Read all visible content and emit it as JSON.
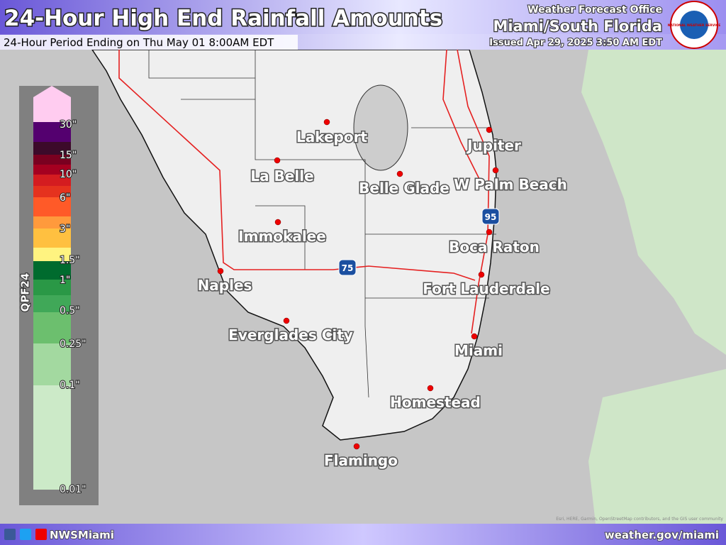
{
  "header": {
    "title": "24-Hour High End Rainfall Amounts",
    "subtitle": "24-Hour Period Ending on Thu May 01 8:00AM EDT",
    "office_line": "Weather Forecast Office",
    "office": "Miami/South Florida",
    "issued": "Issued Apr 29, 2025 3:50 AM EDT",
    "logo_text": "NATIONAL WEATHER SERVICE"
  },
  "legend": {
    "title": "QPF24",
    "labels": [
      "30\"",
      "15\"",
      "10\"",
      "6\"",
      "3\"",
      "1.5\"",
      "1\"",
      "0.5\"",
      "0.25\"",
      "0.1\"",
      "0.01\""
    ]
  },
  "map": {
    "cities": [
      "Lakeport",
      "La Belle",
      "Belle Glade",
      "Jupiter",
      "W Palm Beach",
      "Immokalee",
      "Boca Raton",
      "Naples",
      "Fort Lauderdale",
      "Everglades City",
      "Miami",
      "Homestead",
      "Flamingo"
    ],
    "shields": [
      "75",
      "95"
    ],
    "attribution": "Esri, HERE, Garmin, OpenStreetMap contributors, and the GIS user community"
  },
  "footer": {
    "handle": "NWSMiami",
    "url": "weather.gov/miami"
  }
}
